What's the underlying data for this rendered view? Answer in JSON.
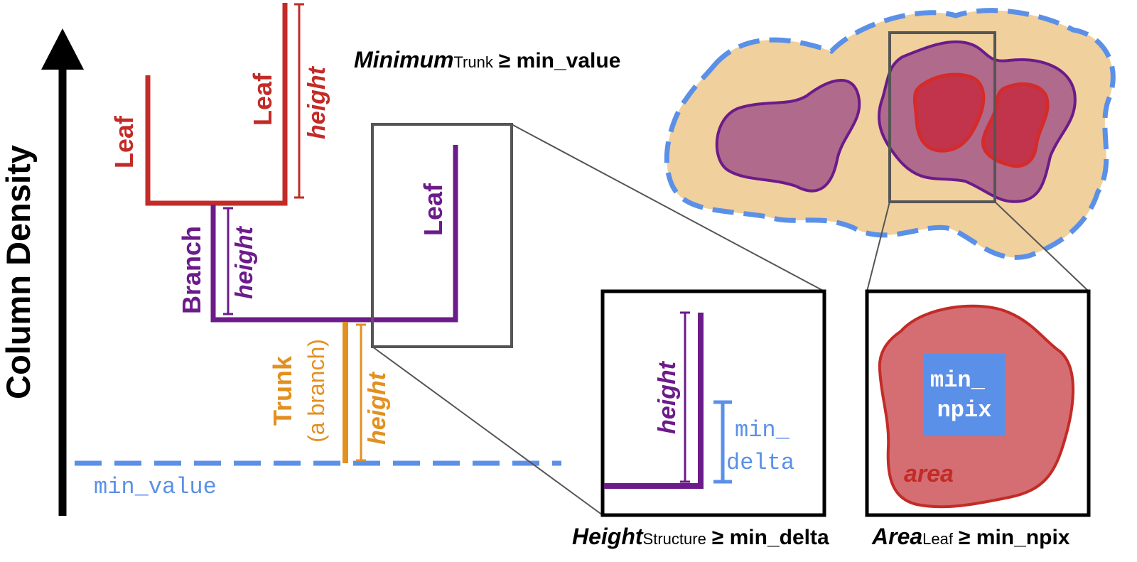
{
  "colors": {
    "red": "#c32b27",
    "purple": "#6c1b8a",
    "orange": "#e2901f",
    "blue": "#5b90e8",
    "tan": "#f0d09c",
    "purple_fill": "#b06a8c",
    "red_fill": "#c2344b",
    "leaf_fill": "#d46e72",
    "gray": "#555555",
    "black": "#000000"
  },
  "axis": {
    "label": "Column Density",
    "arrow_icon": "up-arrow-icon"
  },
  "dendrogram": {
    "leaf_left": "Leaf",
    "leaf_right": "Leaf",
    "leaf_purple": "Leaf",
    "branch": "Branch",
    "trunk": "Trunk",
    "trunk_note": "(a branch)",
    "height_red": "height",
    "height_purple": "height",
    "height_orange": "height"
  },
  "min_value_line": {
    "label": "min_value"
  },
  "criteria": {
    "minimum": {
      "term": "Minimum",
      "subscript": "Trunk",
      "relation": "≥ min_value"
    },
    "height": {
      "term": "Height",
      "subscript": "Structure",
      "relation": "≥ min_delta"
    },
    "area": {
      "term": "Area",
      "subscript": "Leaf",
      "relation": "≥ min_npix"
    }
  },
  "zoom_height": {
    "height_label": "height",
    "delta_line1": "min_",
    "delta_line2": "delta"
  },
  "zoom_area": {
    "npix_line1": "min_",
    "npix_line2": "npix",
    "area_label": "area"
  }
}
